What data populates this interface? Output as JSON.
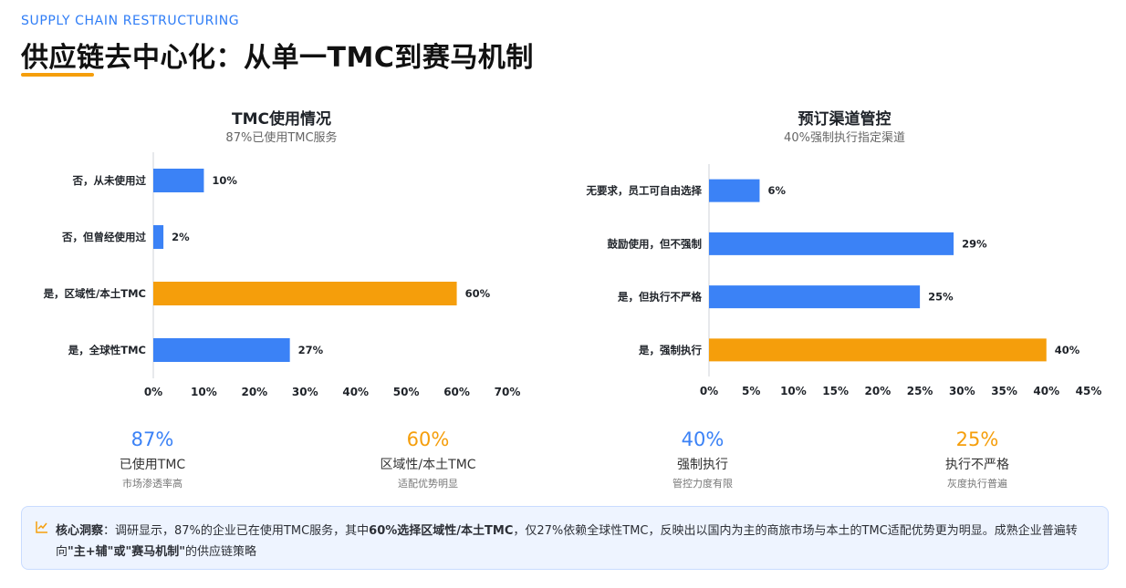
{
  "header": {
    "eyebrow": "SUPPLY CHAIN RESTRUCTURING",
    "title": "供应链去中心化：从单一TMC到赛马机制"
  },
  "colors": {
    "accent_blue": "#3b82f6",
    "accent_orange": "#f59e0b",
    "title_underline": "#f59e0b"
  },
  "charts": {
    "left": {
      "title": "TMC使用情况",
      "subtitle": "87%已使用TMC服务"
    },
    "right": {
      "title": "预订渠道管控",
      "subtitle": "40%强制执行指定渠道"
    }
  },
  "chart_data": [
    {
      "type": "bar",
      "orientation": "horizontal",
      "title": "TMC使用情况",
      "subtitle": "87%已使用TMC服务",
      "categories": [
        "否，从未使用过",
        "否，但曾经使用过",
        "是，区域性/本土TMC",
        "是，全球性TMC"
      ],
      "values": [
        10,
        2,
        60,
        27
      ],
      "value_labels": [
        "10%",
        "2%",
        "60%",
        "27%"
      ],
      "highlight": [
        false,
        false,
        true,
        false
      ],
      "xlim": [
        0,
        70
      ],
      "xticks": [
        0,
        10,
        20,
        30,
        40,
        50,
        60,
        70
      ],
      "xtick_labels": [
        "0%",
        "10%",
        "20%",
        "30%",
        "40%",
        "50%",
        "60%",
        "70%"
      ],
      "grid": false
    },
    {
      "type": "bar",
      "orientation": "horizontal",
      "title": "预订渠道管控",
      "subtitle": "40%强制执行指定渠道",
      "categories": [
        "无要求，员工可自由选择",
        "鼓励使用，但不强制",
        "是，但执行不严格",
        "是，强制执行"
      ],
      "values": [
        6,
        29,
        25,
        40
      ],
      "value_labels": [
        "6%",
        "29%",
        "25%",
        "40%"
      ],
      "highlight": [
        false,
        false,
        false,
        true
      ],
      "xlim": [
        0,
        45
      ],
      "xticks": [
        0,
        5,
        10,
        15,
        20,
        25,
        30,
        35,
        40,
        45
      ],
      "xtick_labels": [
        "0%",
        "5%",
        "10%",
        "15%",
        "20%",
        "25%",
        "30%",
        "35%",
        "40%",
        "45%"
      ],
      "grid": false
    }
  ],
  "stats": [
    {
      "value": "87%",
      "label": "已使用TMC",
      "note": "市场渗透率高",
      "color": "#3b82f6"
    },
    {
      "value": "60%",
      "label": "区域性/本土TMC",
      "note": "适配优势明显",
      "color": "#f59e0b"
    },
    {
      "value": "40%",
      "label": "强制执行",
      "note": "管控力度有限",
      "color": "#3b82f6"
    },
    {
      "value": "25%",
      "label": "执行不严格",
      "note": "灰度执行普遍",
      "color": "#f59e0b"
    }
  ],
  "insight": {
    "icon": "chart-line-icon",
    "label": "核心洞察",
    "text_1": "：调研显示，87%的企业已在使用TMC服务，其中",
    "strong_1": "60%选择区域性/本土TMC",
    "text_2": "，仅27%依赖全球性TMC，反映出以国内为主的商旅市场与本土的TMC适配优势更为明显。成熟企业普遍转向",
    "strong_2": "\"主+辅\"或\"赛马机制\"",
    "text_3": "的供应链策略"
  }
}
